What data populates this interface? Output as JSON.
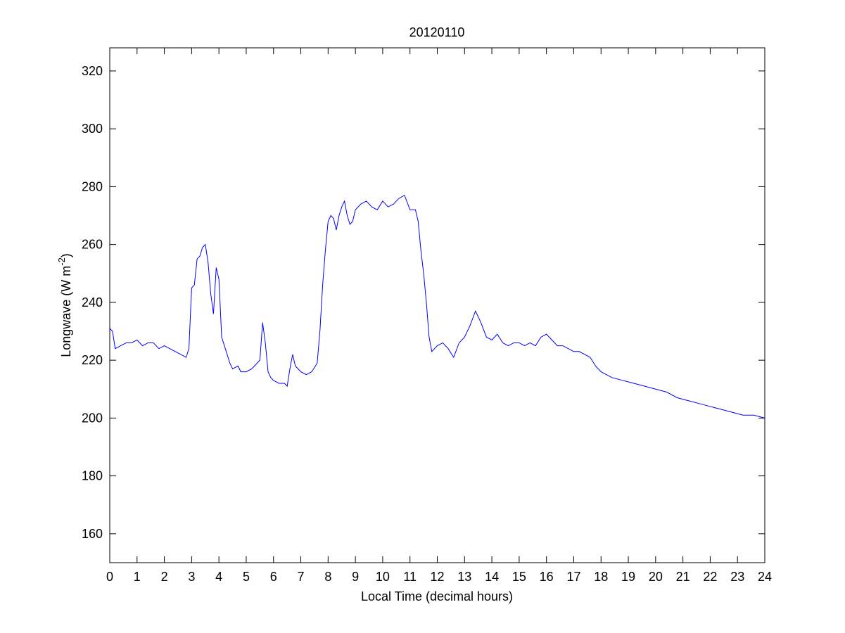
{
  "chart_data": {
    "type": "line",
    "title": "20120110",
    "xlabel": "Local Time (decimal hours)",
    "ylabel": [
      "Longwave (W m",
      "-2",
      ")"
    ],
    "x": [
      0,
      0.1,
      0.2,
      0.4,
      0.6,
      0.8,
      1.0,
      1.2,
      1.4,
      1.6,
      1.8,
      2.0,
      2.2,
      2.4,
      2.6,
      2.8,
      2.9,
      3.0,
      3.1,
      3.2,
      3.3,
      3.4,
      3.5,
      3.6,
      3.7,
      3.8,
      3.9,
      4.0,
      4.1,
      4.2,
      4.4,
      4.5,
      4.7,
      4.8,
      5.0,
      5.2,
      5.4,
      5.5,
      5.6,
      5.7,
      5.8,
      5.9,
      6.0,
      6.2,
      6.4,
      6.5,
      6.6,
      6.7,
      6.8,
      7.0,
      7.2,
      7.4,
      7.6,
      7.7,
      7.8,
      7.9,
      8.0,
      8.1,
      8.2,
      8.3,
      8.4,
      8.5,
      8.6,
      8.7,
      8.8,
      8.9,
      9.0,
      9.2,
      9.4,
      9.6,
      9.8,
      10.0,
      10.2,
      10.4,
      10.6,
      10.8,
      11.0,
      11.2,
      11.3,
      11.4,
      11.5,
      11.6,
      11.7,
      11.8,
      12.0,
      12.2,
      12.4,
      12.6,
      12.8,
      13.0,
      13.2,
      13.4,
      13.6,
      13.8,
      14.0,
      14.2,
      14.4,
      14.6,
      14.8,
      15.0,
      15.2,
      15.4,
      15.6,
      15.8,
      16.0,
      16.2,
      16.4,
      16.6,
      16.8,
      17.0,
      17.2,
      17.4,
      17.6,
      17.8,
      18.0,
      18.4,
      18.8,
      19.2,
      19.6,
      20.0,
      20.4,
      20.8,
      21.2,
      21.6,
      22.0,
      22.4,
      22.8,
      23.2,
      23.6,
      24.0
    ],
    "series": [
      {
        "name": "Longwave",
        "color": "#0000ff",
        "values": [
          231,
          230,
          224,
          225,
          226,
          226,
          227,
          225,
          226,
          226,
          224,
          225,
          224,
          223,
          222,
          221,
          224,
          245,
          246,
          255,
          256,
          259,
          260,
          254,
          243,
          236,
          252,
          248,
          228,
          225,
          219,
          217,
          218,
          216,
          216,
          217,
          219,
          220,
          233,
          226,
          216,
          214,
          213,
          212,
          212,
          211,
          217,
          222,
          218,
          216,
          215,
          216,
          219,
          230,
          246,
          258,
          268,
          270,
          269,
          265,
          270,
          273,
          275,
          270,
          267,
          268,
          272,
          274,
          275,
          273,
          272,
          275,
          273,
          274,
          276,
          277,
          272,
          272,
          268,
          258,
          250,
          240,
          228,
          223,
          225,
          226,
          224,
          221,
          226,
          228,
          232,
          237,
          233,
          228,
          227,
          229,
          226,
          225,
          226,
          226,
          225,
          226,
          225,
          228,
          229,
          227,
          225,
          225,
          224,
          223,
          223,
          222,
          221,
          218,
          216,
          214,
          213,
          212,
          211,
          210,
          209,
          207,
          206,
          205,
          204,
          203,
          202,
          201,
          201,
          200
        ]
      }
    ],
    "xlim": [
      0,
      24
    ],
    "xticks": [
      0,
      1,
      2,
      3,
      4,
      5,
      6,
      7,
      8,
      9,
      10,
      11,
      12,
      13,
      14,
      15,
      16,
      17,
      18,
      19,
      20,
      21,
      22,
      23,
      24
    ],
    "ylim": [
      150,
      328
    ],
    "yticks": [
      160,
      180,
      200,
      220,
      240,
      260,
      280,
      300,
      320
    ]
  }
}
